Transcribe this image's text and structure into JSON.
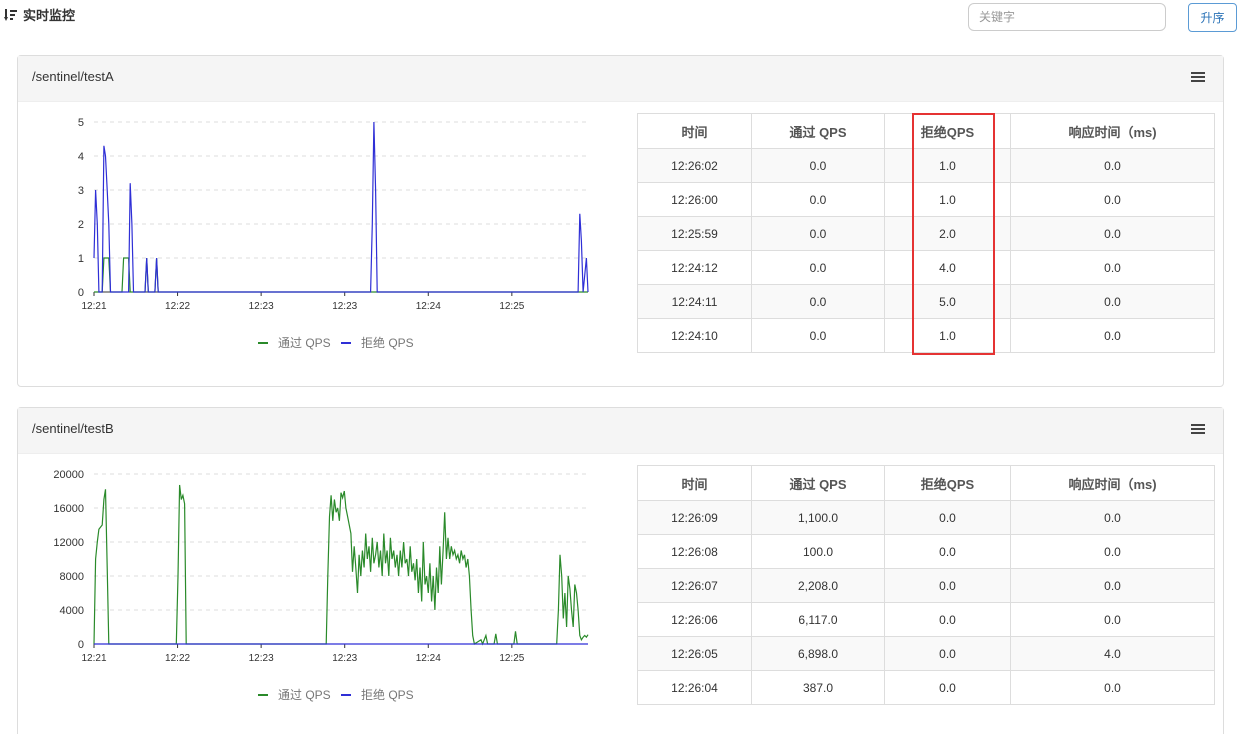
{
  "header": {
    "title": "实时监控",
    "search_placeholder": "关键字",
    "sort_label": "升序"
  },
  "colors": {
    "pass": "#2a8a2a",
    "block": "#2f2fd6",
    "highlight": "#e53333"
  },
  "table_headers": [
    "时间",
    "通过 QPS",
    "拒绝QPS",
    "响应时间（ms)"
  ],
  "resources": [
    {
      "title": "/sentinel/testA",
      "rows": [
        [
          "12:26:02",
          "0.0",
          "1.0",
          "0.0"
        ],
        [
          "12:26:00",
          "0.0",
          "1.0",
          "0.0"
        ],
        [
          "12:25:59",
          "0.0",
          "2.0",
          "0.0"
        ],
        [
          "12:24:12",
          "0.0",
          "4.0",
          "0.0"
        ],
        [
          "12:24:11",
          "0.0",
          "5.0",
          "0.0"
        ],
        [
          "12:24:10",
          "0.0",
          "1.0",
          "0.0"
        ]
      ],
      "chart_data": {
        "type": "line",
        "x_ticks": [
          "12:21",
          "12:22",
          "12:23",
          "12:23",
          "12:24",
          "12:25"
        ],
        "y_ticks": [
          0,
          1,
          2,
          3,
          4,
          5
        ],
        "ylim": [
          0,
          5
        ],
        "xlim_seconds": [
          0,
          300
        ],
        "series": [
          {
            "name": "通过 QPS",
            "points": [
              [
                0,
                0
              ],
              [
                5,
                0
              ],
              [
                6,
                1
              ],
              [
                9,
                1
              ],
              [
                10,
                0
              ],
              [
                17,
                0
              ],
              [
                18,
                1
              ],
              [
                21,
                1
              ],
              [
                22,
                0
              ],
              [
                31,
                0
              ],
              [
                32,
                1
              ],
              [
                33,
                0
              ],
              [
                37,
                0
              ],
              [
                38,
                1
              ],
              [
                39,
                0
              ],
              [
                300,
                0
              ]
            ]
          },
          {
            "name": "拒绝 QPS",
            "points": [
              [
                0,
                1
              ],
              [
                1,
                3
              ],
              [
                2,
                2
              ],
              [
                3,
                0
              ],
              [
                5,
                0
              ],
              [
                6,
                4.3
              ],
              [
                7,
                4
              ],
              [
                8,
                3
              ],
              [
                9,
                2
              ],
              [
                10,
                0
              ],
              [
                21,
                0
              ],
              [
                22,
                3.2
              ],
              [
                23,
                2
              ],
              [
                24,
                0
              ],
              [
                31,
                0
              ],
              [
                32,
                1
              ],
              [
                33,
                0
              ],
              [
                37,
                0
              ],
              [
                38,
                1
              ],
              [
                39,
                0
              ],
              [
                168,
                0
              ],
              [
                169,
                2
              ],
              [
                170,
                5
              ],
              [
                171,
                3
              ],
              [
                172,
                0
              ],
              [
                294,
                0
              ],
              [
                295,
                2.3
              ],
              [
                296,
                1.5
              ],
              [
                297,
                0
              ],
              [
                299,
                1
              ],
              [
                300,
                0
              ]
            ]
          }
        ]
      }
    },
    {
      "title": "/sentinel/testB",
      "rows": [
        [
          "12:26:09",
          "1,100.0",
          "0.0",
          "0.0"
        ],
        [
          "12:26:08",
          "100.0",
          "0.0",
          "0.0"
        ],
        [
          "12:26:07",
          "2,208.0",
          "0.0",
          "0.0"
        ],
        [
          "12:26:06",
          "6,117.0",
          "0.0",
          "0.0"
        ],
        [
          "12:26:05",
          "6,898.0",
          "0.0",
          "4.0"
        ],
        [
          "12:26:04",
          "387.0",
          "0.0",
          "0.0"
        ]
      ],
      "chart_data": {
        "type": "line",
        "x_ticks": [
          "12:21",
          "12:22",
          "12:23",
          "12:23",
          "12:24",
          "12:25"
        ],
        "y_ticks": [
          0,
          4000,
          8000,
          12000,
          16000,
          20000
        ],
        "ylim": [
          0,
          20000
        ],
        "xlim_seconds": [
          0,
          300
        ],
        "series": [
          {
            "name": "通过 QPS",
            "points": [
              [
                0,
                0
              ],
              [
                1,
                10000
              ],
              [
                2,
                12000
              ],
              [
                3,
                13500
              ],
              [
                5,
                14000
              ],
              [
                6,
                17000
              ],
              [
                7,
                18200
              ],
              [
                8,
                9000
              ],
              [
                9,
                0
              ],
              [
                50,
                0
              ],
              [
                51,
                8000
              ],
              [
                52,
                18700
              ],
              [
                53,
                17000
              ],
              [
                54,
                17500
              ],
              [
                55,
                16500
              ],
              [
                56,
                0
              ],
              [
                141,
                0
              ],
              [
                142,
                8000
              ],
              [
                143,
                15000
              ],
              [
                144,
                17500
              ],
              [
                145,
                14500
              ],
              [
                146,
                17000
              ],
              [
                147,
                15500
              ],
              [
                148,
                16000
              ],
              [
                149,
                14500
              ],
              [
                150,
                17800
              ],
              [
                151,
                17200
              ],
              [
                152,
                18000
              ],
              [
                153,
                16000
              ],
              [
                154,
                15000
              ],
              [
                156,
                13000
              ],
              [
                157,
                8500
              ],
              [
                158,
                11500
              ],
              [
                159,
                9000
              ],
              [
                160,
                6000
              ],
              [
                161,
                10500
              ],
              [
                162,
                8000
              ],
              [
                163,
                11000
              ],
              [
                164,
                9000
              ],
              [
                165,
                13000
              ],
              [
                166,
                10000
              ],
              [
                167,
                11500
              ],
              [
                168,
                8500
              ],
              [
                169,
                12500
              ],
              [
                170,
                9500
              ],
              [
                171,
                10500
              ],
              [
                172,
                12000
              ],
              [
                173,
                9000
              ],
              [
                174,
                11000
              ],
              [
                175,
                8000
              ],
              [
                176,
                13000
              ],
              [
                177,
                9500
              ],
              [
                178,
                11000
              ],
              [
                179,
                8000
              ],
              [
                180,
                12500
              ],
              [
                181,
                10000
              ],
              [
                182,
                11000
              ],
              [
                183,
                9000
              ],
              [
                184,
                10500
              ],
              [
                185,
                8000
              ],
              [
                186,
                11000
              ],
              [
                187,
                9000
              ],
              [
                188,
                12000
              ],
              [
                189,
                9500
              ],
              [
                190,
                10000
              ],
              [
                191,
                8000
              ],
              [
                192,
                11500
              ],
              [
                193,
                8500
              ],
              [
                194,
                9500
              ],
              [
                195,
                7500
              ],
              [
                196,
                10000
              ],
              [
                197,
                6000
              ],
              [
                198,
                9000
              ],
              [
                199,
                5000
              ],
              [
                200,
                12000
              ],
              [
                201,
                7000
              ],
              [
                202,
                8000
              ],
              [
                203,
                6000
              ],
              [
                204,
                9500
              ],
              [
                205,
                5000
              ],
              [
                206,
                8000
              ],
              [
                207,
                4000
              ],
              [
                208,
                9000
              ],
              [
                209,
                6000
              ],
              [
                210,
                11500
              ],
              [
                211,
                7000
              ],
              [
                212,
                11000
              ],
              [
                213,
                15500
              ],
              [
                214,
                10000
              ],
              [
                215,
                12500
              ],
              [
                216,
                10000
              ],
              [
                217,
                11500
              ],
              [
                218,
                10500
              ],
              [
                219,
                11000
              ],
              [
                220,
                10000
              ],
              [
                221,
                10500
              ],
              [
                222,
                9500
              ],
              [
                223,
                11000
              ],
              [
                224,
                10000
              ],
              [
                225,
                10500
              ],
              [
                226,
                9000
              ],
              [
                227,
                10000
              ],
              [
                228,
                8000
              ],
              [
                229,
                4000
              ],
              [
                230,
                1000
              ],
              [
                231,
                0
              ],
              [
                235,
                500
              ],
              [
                236,
                0
              ],
              [
                238,
                1000
              ],
              [
                239,
                0
              ],
              [
                243,
                0
              ],
              [
                244,
                1200
              ],
              [
                245,
                0
              ],
              [
                255,
                0
              ],
              [
                256,
                1500
              ],
              [
                257,
                0
              ],
              [
                281,
                0
              ],
              [
                282,
                4000
              ],
              [
                283,
                10500
              ],
              [
                284,
                8000
              ],
              [
                285,
                3000
              ],
              [
                286,
                6000
              ],
              [
                287,
                2000
              ],
              [
                288,
                8000
              ],
              [
                289,
                6500
              ],
              [
                290,
                4000
              ],
              [
                291,
                2000
              ],
              [
                292,
                7000
              ],
              [
                293,
                6000
              ],
              [
                294,
                4000
              ],
              [
                295,
                1000
              ],
              [
                296,
                500
              ],
              [
                297,
                800
              ],
              [
                298,
                1000
              ],
              [
                299,
                800
              ],
              [
                300,
                1100
              ]
            ]
          },
          {
            "name": "拒绝 QPS",
            "points": [
              [
                0,
                0
              ],
              [
                300,
                0
              ]
            ]
          }
        ]
      }
    }
  ]
}
